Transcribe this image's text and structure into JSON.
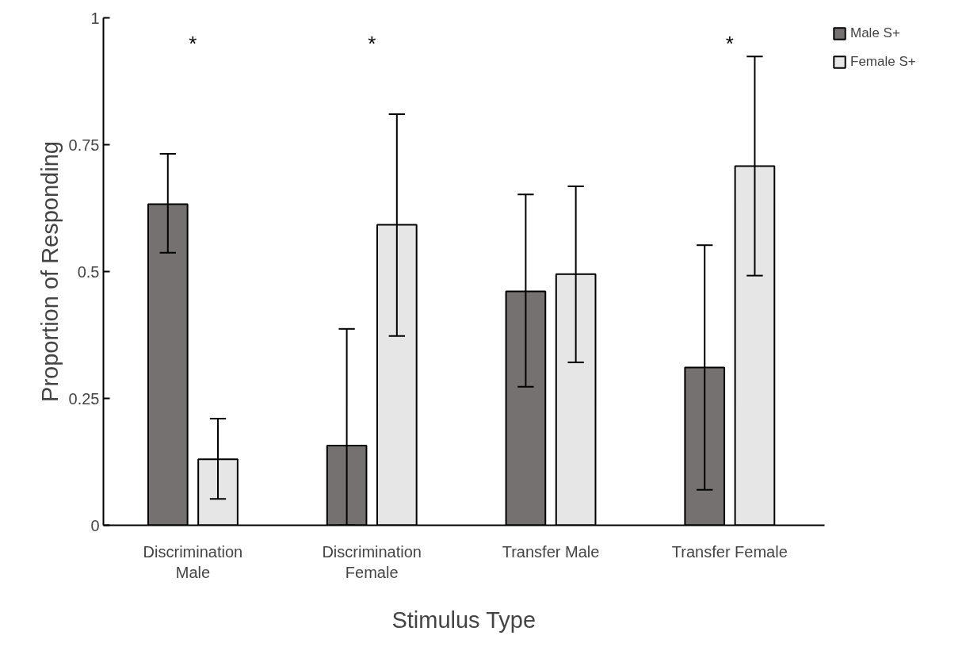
{
  "chart_data": {
    "type": "bar",
    "xlabel": "Stimulus Type",
    "ylabel": "Proportion of Responding",
    "categories": [
      "Discrimination Male",
      "Discrimination Female",
      "Transfer Male",
      "Transfer Female"
    ],
    "series": [
      {
        "name": "Male S+",
        "color": "#767171",
        "values": [
          0.633,
          0.157,
          0.461,
          0.311
        ],
        "errors": [
          [
            0.537,
            0.732
          ],
          [
            0,
            0.387
          ],
          [
            0.273,
            0.652
          ],
          [
            0.07,
            0.552
          ]
        ]
      },
      {
        "name": "Female S+",
        "color": "#e7e6e6",
        "values": [
          0.13,
          0.592,
          0.495,
          0.708
        ],
        "errors": [
          [
            0.052,
            0.21
          ],
          [
            0.373,
            0.81
          ],
          [
            0.321,
            0.668
          ],
          [
            0.492,
            0.924
          ]
        ]
      }
    ],
    "ylim": [
      0,
      1
    ],
    "yticks": [
      0,
      0.25,
      0.5,
      0.75,
      1
    ],
    "grid": false,
    "legend": "top right",
    "annotations": [
      "*",
      "*",
      "*"
    ]
  }
}
